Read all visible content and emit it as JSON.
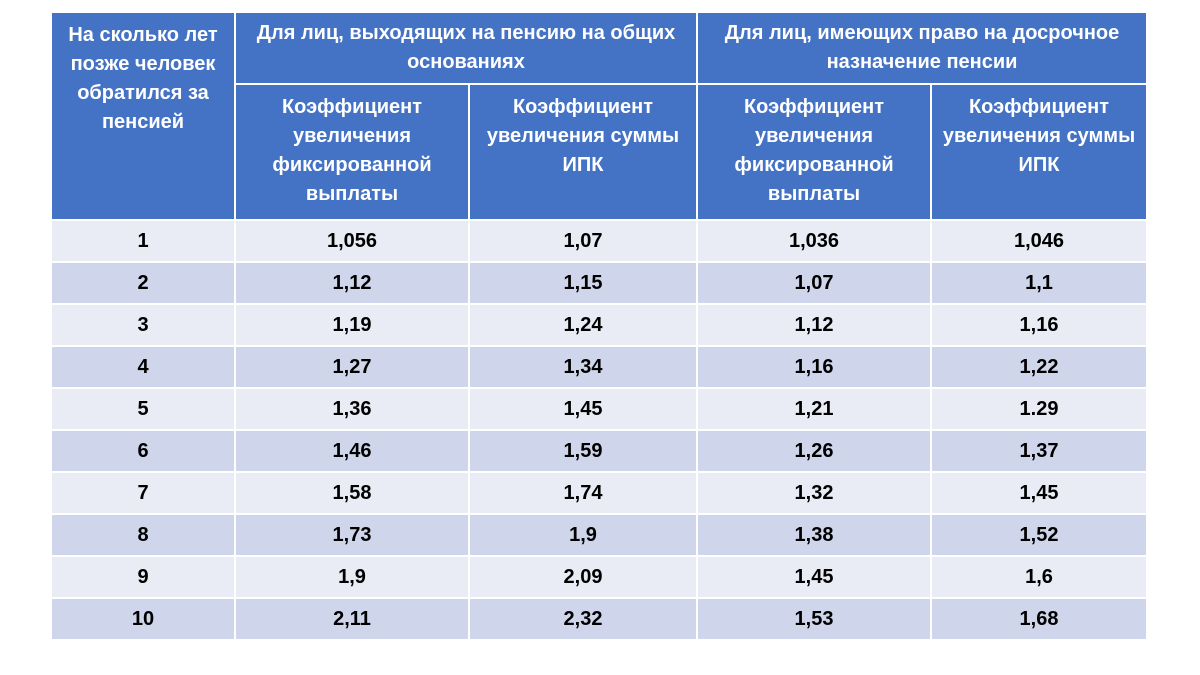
{
  "table": {
    "header": {
      "years": "На сколько лет позже человек обратился за пенсией",
      "group_general": "Для лиц, выходящих на пенсию на общих основаниях",
      "group_early": "Для лиц, имеющих право на досрочное назначение пенсии",
      "fixed_coef": "Коэффициент увеличения фиксированной выплаты",
      "ipk_coef": "Коэффициент увеличения суммы ИПК"
    },
    "rows": [
      [
        "1",
        "1,056",
        "1,07",
        "1,036",
        "1,046"
      ],
      [
        "2",
        "1,12",
        "1,15",
        "1,07",
        "1,1"
      ],
      [
        "3",
        "1,19",
        "1,24",
        "1,12",
        "1,16"
      ],
      [
        "4",
        "1,27",
        "1,34",
        "1,16",
        "1,22"
      ],
      [
        "5",
        "1,36",
        "1,45",
        "1,21",
        "1.29"
      ],
      [
        "6",
        "1,46",
        "1,59",
        "1,26",
        "1,37"
      ],
      [
        "7",
        "1,58",
        "1,74",
        "1,32",
        "1,45"
      ],
      [
        "8",
        "1,73",
        "1,9",
        "1,38",
        "1,52"
      ],
      [
        "9",
        "1,9",
        "2,09",
        "1,45",
        "1,6"
      ],
      [
        "10",
        "2,11",
        "2,32",
        "1,53",
        "1,68"
      ]
    ]
  }
}
